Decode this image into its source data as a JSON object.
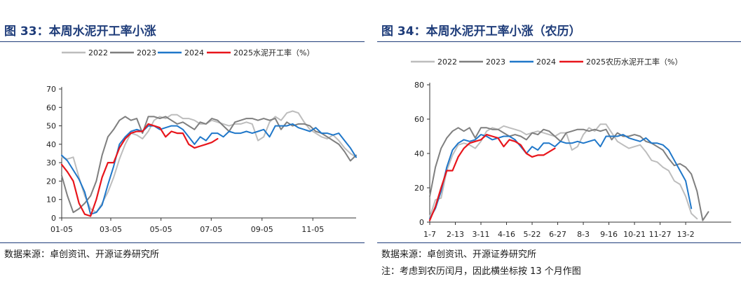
{
  "charts": [
    {
      "title": "图 33：本周水泥开工率小涨",
      "source": "数据来源：卓创资讯、开源证券研究所",
      "note": ""
    },
    {
      "title": "图 34：本周水泥开工率小涨（农历）",
      "source": "数据来源：卓创资讯、开源证券研究所",
      "note": "注：考虑到农历闰月，因此横坐标按 13 个月作图"
    }
  ],
  "chart_data": [
    {
      "type": "line",
      "title": "图 33：本周水泥开工率小涨",
      "unit": "%",
      "x_range": [
        1,
        52
      ],
      "x_ticks": [
        {
          "label": "01-05",
          "x": 1
        },
        {
          "label": "03-05",
          "x": 9.5
        },
        {
          "label": "05-05",
          "x": 18.2
        },
        {
          "label": "07-05",
          "x": 26.9
        },
        {
          "label": "09-05",
          "x": 35.7
        },
        {
          "label": "11-05",
          "x": 44.5
        }
      ],
      "ylim": [
        0,
        70
      ],
      "y_ticks": [
        0,
        10,
        20,
        30,
        40,
        50,
        60,
        70
      ],
      "legend_position": "top",
      "series": [
        {
          "name": "2022",
          "color": "#bdbdbd",
          "x": [
            1,
            2,
            3,
            4,
            5,
            6,
            7,
            8,
            9,
            10,
            11,
            12,
            13,
            14,
            15,
            16,
            17,
            18,
            19,
            20,
            21,
            22,
            23,
            24,
            25,
            26,
            27,
            28,
            29,
            30,
            31,
            32,
            33,
            34,
            35,
            36,
            37,
            38,
            39,
            40,
            41,
            42,
            43,
            44,
            45,
            46,
            47,
            48,
            49,
            50,
            51,
            52
          ],
          "values": [
            33,
            32,
            33,
            22,
            12,
            5,
            3,
            8,
            14,
            22,
            32,
            40,
            46,
            45,
            43,
            47,
            53,
            55,
            54,
            56,
            56,
            54,
            54,
            53,
            51,
            51,
            53,
            52,
            51,
            50,
            51,
            51,
            52,
            51,
            42,
            44,
            52,
            55,
            53,
            57,
            58,
            57,
            52,
            48,
            46,
            44,
            43,
            45,
            42,
            38,
            35,
            33
          ]
        },
        {
          "name": "2023",
          "color": "#7f7f7f",
          "x": [
            1,
            2,
            3,
            4,
            5,
            6,
            7,
            8,
            9,
            10,
            11,
            12,
            13,
            14,
            15,
            16,
            17,
            18,
            19,
            20,
            21,
            22,
            23,
            24,
            25,
            26,
            27,
            28,
            29,
            30,
            31,
            32,
            33,
            34,
            35,
            36,
            37,
            38,
            39,
            40,
            41,
            42,
            43,
            44,
            45,
            46,
            47,
            48,
            49,
            50,
            51,
            52
          ],
          "values": [
            23,
            12,
            3,
            5,
            8,
            12,
            20,
            34,
            44,
            48,
            53,
            55,
            53,
            54,
            46,
            55,
            55,
            54,
            55,
            53,
            51,
            52,
            50,
            48,
            52,
            51,
            54,
            53,
            50,
            47,
            52,
            53,
            54,
            54,
            53,
            54,
            53,
            54,
            48,
            52,
            50,
            51,
            51,
            50,
            47,
            46,
            44,
            42,
            40,
            36,
            31,
            34
          ]
        },
        {
          "name": "2024",
          "color": "#1f77c9",
          "x": [
            1,
            2,
            3,
            4,
            5,
            6,
            7,
            8,
            9,
            10,
            11,
            12,
            13,
            14,
            15,
            16,
            17,
            18,
            19,
            20,
            21,
            22,
            23,
            24,
            25,
            26,
            27,
            28,
            29,
            30,
            31,
            32,
            33,
            34,
            35,
            36,
            37,
            38,
            39,
            40,
            41,
            42,
            43,
            44,
            45,
            46,
            47,
            48,
            49,
            50,
            51,
            52
          ],
          "values": [
            34,
            31,
            26,
            21,
            14,
            2,
            3,
            7,
            18,
            28,
            40,
            44,
            47,
            48,
            47,
            50,
            50,
            48,
            49,
            50,
            50,
            48,
            44,
            40,
            44,
            42,
            46,
            46,
            44,
            47,
            46,
            46,
            47,
            46,
            47,
            48,
            44,
            50,
            50,
            50,
            51,
            49,
            48,
            47,
            49,
            46,
            46,
            45,
            46,
            42,
            38,
            33
          ]
        },
        {
          "name": "2025水泥开工率（%）",
          "color": "#e8151b",
          "x": [
            1,
            2,
            3,
            4,
            5,
            6,
            7,
            8,
            9,
            10,
            11,
            12,
            13,
            14,
            15,
            16,
            17,
            18,
            19,
            20,
            21,
            22,
            23,
            24,
            25,
            26,
            27,
            28
          ],
          "values": [
            29,
            25,
            20,
            8,
            2,
            1,
            10,
            22,
            30,
            30,
            38,
            43,
            46,
            47,
            47,
            51,
            50,
            49,
            44,
            47,
            46,
            46,
            40,
            38,
            39,
            40,
            41,
            43
          ]
        }
      ]
    },
    {
      "type": "line",
      "title": "图 34：本周水泥开工率小涨（农历）",
      "unit": "%",
      "x_range": [
        1,
        54
      ],
      "x_ticks": [
        {
          "label": "1-7",
          "x": 1
        },
        {
          "label": "2-13",
          "x": 5.5
        },
        {
          "label": "3-11",
          "x": 10
        },
        {
          "label": "4-16",
          "x": 14.5
        },
        {
          "label": "5-22",
          "x": 19
        },
        {
          "label": "6-27",
          "x": 23.5
        },
        {
          "label": "8-3",
          "x": 28
        },
        {
          "label": "9-16",
          "x": 32.5
        },
        {
          "label": "10-21",
          "x": 37
        },
        {
          "label": "11-27",
          "x": 41.5
        },
        {
          "label": "13-2",
          "x": 46
        }
      ],
      "ylim": [
        0,
        80
      ],
      "y_ticks": [
        0,
        20,
        40,
        60,
        80
      ],
      "legend_position": "top",
      "series": [
        {
          "name": "2022",
          "color": "#bdbdbd",
          "x": [
            1,
            2,
            3,
            4,
            5,
            6,
            7,
            8,
            9,
            10,
            11,
            12,
            13,
            14,
            15,
            16,
            17,
            18,
            19,
            20,
            21,
            22,
            23,
            24,
            25,
            26,
            27,
            28,
            29,
            30,
            31,
            32,
            33,
            34,
            35,
            36,
            37,
            38,
            39,
            40,
            41,
            42,
            43,
            44,
            45,
            46,
            47,
            48
          ],
          "values": [
            3,
            13,
            14,
            30,
            39,
            45,
            46,
            45,
            43,
            47,
            53,
            55,
            54,
            56,
            55,
            54,
            53,
            51,
            52,
            53,
            52,
            51,
            50,
            52,
            52,
            42,
            44,
            51,
            55,
            53,
            57,
            57,
            52,
            47,
            45,
            43,
            44,
            45,
            41,
            36,
            35,
            32,
            30,
            24,
            22,
            15,
            5,
            2
          ]
        },
        {
          "name": "2023",
          "color": "#7f7f7f",
          "x": [
            1,
            2,
            3,
            4,
            5,
            6,
            7,
            8,
            9,
            10,
            11,
            12,
            13,
            14,
            15,
            16,
            17,
            18,
            19,
            20,
            21,
            22,
            23,
            24,
            25,
            26,
            27,
            28,
            29,
            30,
            31,
            32,
            33,
            34,
            35,
            36,
            37,
            38,
            39,
            40,
            41,
            42,
            43,
            44,
            45,
            46,
            47,
            48,
            49,
            50
          ],
          "values": [
            15,
            32,
            43,
            49,
            53,
            55,
            53,
            55,
            49,
            55,
            55,
            54,
            54,
            52,
            50,
            51,
            50,
            48,
            52,
            51,
            54,
            53,
            50,
            47,
            52,
            53,
            54,
            54,
            53,
            54,
            53,
            54,
            48,
            52,
            50,
            50,
            51,
            50,
            47,
            46,
            44,
            42,
            37,
            33,
            34,
            32,
            28,
            18,
            1,
            6
          ]
        },
        {
          "name": "2024",
          "color": "#1f77c9",
          "x": [
            1,
            2,
            3,
            4,
            5,
            6,
            7,
            8,
            9,
            10,
            11,
            12,
            13,
            14,
            15,
            16,
            17,
            18,
            19,
            20,
            21,
            22,
            23,
            24,
            25,
            26,
            27,
            28,
            29,
            30,
            31,
            32,
            33,
            34,
            35,
            36,
            37,
            38,
            39,
            40,
            41,
            42,
            43,
            44,
            45,
            46,
            47
          ],
          "values": [
            2,
            8,
            18,
            32,
            42,
            46,
            48,
            47,
            48,
            51,
            50,
            48,
            49,
            50,
            50,
            48,
            44,
            40,
            44,
            42,
            46,
            46,
            44,
            47,
            46,
            46,
            47,
            46,
            47,
            48,
            44,
            50,
            50,
            50,
            51,
            49,
            48,
            47,
            49,
            46,
            46,
            45,
            42,
            36,
            30,
            24,
            8
          ]
        },
        {
          "name": "2025农历水泥开工率（%）",
          "color": "#e8151b",
          "x": [
            1,
            2,
            3,
            4,
            5,
            6,
            7,
            8,
            9,
            10,
            11,
            12,
            13,
            14,
            15,
            16,
            17,
            18,
            19,
            20,
            21,
            22,
            23
          ],
          "values": [
            1,
            9,
            20,
            30,
            30,
            38,
            43,
            46,
            47,
            48,
            51,
            50,
            49,
            44,
            48,
            47,
            45,
            40,
            38,
            39,
            39,
            41,
            43
          ]
        }
      ]
    }
  ]
}
